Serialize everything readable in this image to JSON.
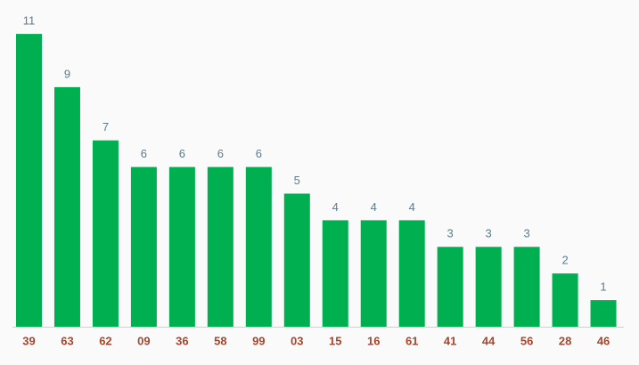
{
  "chart_data": {
    "type": "bar",
    "categories": [
      "39",
      "63",
      "62",
      "09",
      "36",
      "58",
      "99",
      "03",
      "15",
      "16",
      "61",
      "41",
      "44",
      "56",
      "28",
      "46"
    ],
    "values": [
      11,
      9,
      7,
      6,
      6,
      6,
      6,
      5,
      4,
      4,
      4,
      3,
      3,
      3,
      2,
      1
    ],
    "color": "#00b050"
  }
}
